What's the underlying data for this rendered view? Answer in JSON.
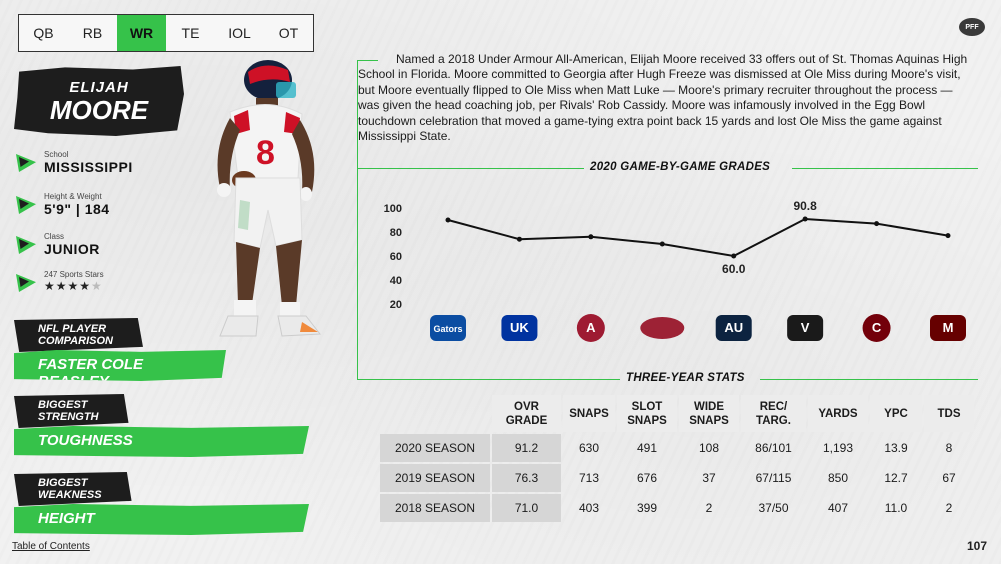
{
  "tabs": [
    {
      "label": "QB",
      "active": false
    },
    {
      "label": "RB",
      "active": false
    },
    {
      "label": "WR",
      "active": true
    },
    {
      "label": "TE",
      "active": false
    },
    {
      "label": "IOL",
      "active": false
    },
    {
      "label": "OT",
      "active": false
    }
  ],
  "logo_text": "PFF",
  "player": {
    "first_name": "ELIJAH",
    "last_name": "MOORE",
    "jersey_number": "8"
  },
  "info": {
    "school_label": "School",
    "school_value": "MISSISSIPPI",
    "hw_label": "Height & Weight",
    "hw_value": "5'9\" | 184",
    "class_label": "Class",
    "class_value": "JUNIOR",
    "stars_label": "247 Sports Stars",
    "stars_filled": 4,
    "stars_total": 5,
    "stars_filled_text": "★★★★",
    "stars_empty_text": "★"
  },
  "callouts": {
    "comparison_head_line1": "NFL PLAYER",
    "comparison_head_line2": "COMPARISON",
    "comparison_value": "FASTER COLE BEASLEY",
    "strength_head_line1": "BIGGEST",
    "strength_head_line2": "STRENGTH",
    "strength_value": "TOUGHNESS",
    "weakness_head_line1": "BIGGEST",
    "weakness_head_line2": "WEAKNESS",
    "weakness_value": "HEIGHT"
  },
  "bio": "Named a 2018 Under Armour All-American, Elijah Moore received 33 offers out of St. Thomas Aquinas High School in Florida. Moore committed to Georgia after Hugh Freeze was dismissed at Ole Miss during Moore's visit, but Moore eventually flipped to Ole Miss when Matt Luke — Moore's primary recruiter throughout the process — was given the head coaching job, per Rivals' Rob Cassidy. Moore was infamously involved in the Egg Bowl touchdown celebration that moved a game-tying extra point back 15 yards and lost Ole Miss the game against Mississippi State.",
  "chart_title": "2020 GAME-BY-GAME GRADES",
  "chart_data": {
    "type": "line",
    "categories": [
      "Florida",
      "Kentucky",
      "Alabama",
      "Arkansas",
      "Auburn",
      "Vanderbilt",
      "South Carolina",
      "Mississippi State"
    ],
    "values": [
      90,
      74,
      76,
      70,
      60.0,
      90.8,
      87,
      77
    ],
    "data_labels": {
      "4": "60.0",
      "5": "90.8"
    },
    "yticks": [
      20,
      40,
      60,
      80,
      100
    ],
    "ylim": [
      20,
      100
    ],
    "line_color": "#111111",
    "grid": false
  },
  "team_logos": [
    {
      "name": "Florida",
      "color": "#0b4da2",
      "text": "Gators"
    },
    {
      "name": "Kentucky",
      "color": "#0033a0",
      "text": "UK"
    },
    {
      "name": "Alabama",
      "color": "#9e1b32",
      "text": "A"
    },
    {
      "name": "Arkansas",
      "color": "#9d2235",
      "text": ""
    },
    {
      "name": "Auburn",
      "color": "#0c2340",
      "text": "AU"
    },
    {
      "name": "Vanderbilt",
      "color": "#1a1a1a",
      "text": "V"
    },
    {
      "name": "South Carolina",
      "color": "#73000a",
      "text": "C"
    },
    {
      "name": "Mississippi State",
      "color": "#660000",
      "text": "M"
    }
  ],
  "table_title": "THREE-YEAR STATS",
  "table": {
    "headers": [
      [
        "OVR",
        "GRADE"
      ],
      [
        "SNAPS"
      ],
      [
        "SLOT",
        "SNAPS"
      ],
      [
        "WIDE",
        "SNAPS"
      ],
      [
        "REC/",
        "TARG."
      ],
      [
        "YARDS"
      ],
      [
        "YPC"
      ],
      [
        "TDs"
      ]
    ],
    "rows": [
      {
        "season": "2020 SEASON",
        "cells": [
          "91.2",
          "630",
          "491",
          "108",
          "86/101",
          "1,193",
          "13.9",
          "8"
        ]
      },
      {
        "season": "2019 SEASON",
        "cells": [
          "76.3",
          "713",
          "676",
          "37",
          "67/115",
          "850",
          "12.7",
          "67"
        ]
      },
      {
        "season": "2018 SEASON",
        "cells": [
          "71.0",
          "403",
          "399",
          "2",
          "37/50",
          "407",
          "11.0",
          "2"
        ]
      }
    ]
  },
  "footer": {
    "toc_label": "Table of Contents",
    "page_number": "107"
  },
  "colors": {
    "accent_green": "#36c24a",
    "dark": "#1d1d1d",
    "ole_miss_red": "#ce1126",
    "ole_miss_navy": "#14213d"
  }
}
